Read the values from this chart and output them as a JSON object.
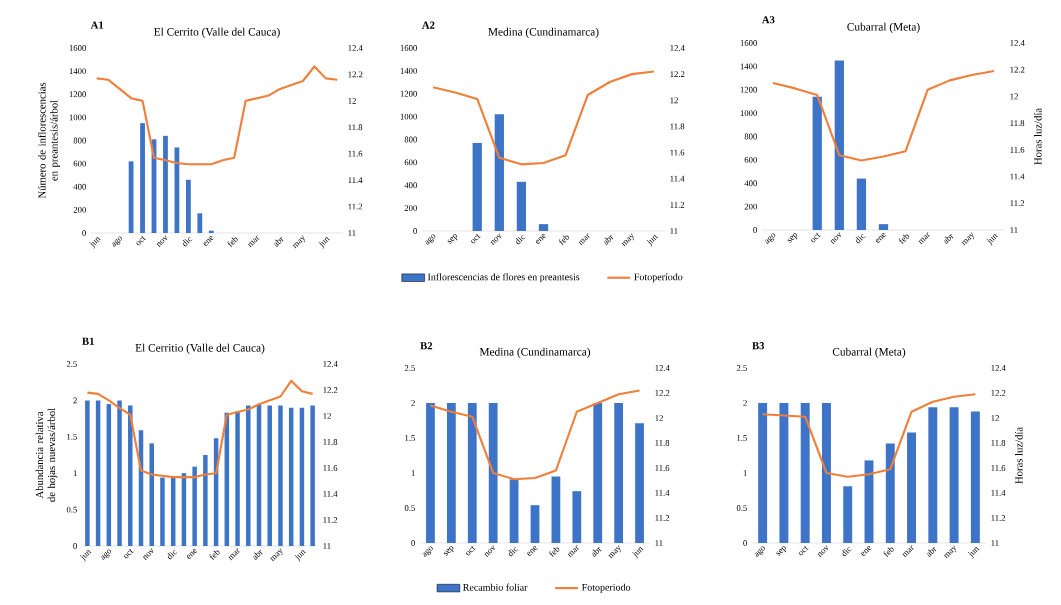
{
  "chart_data": [
    {
      "type": "bar",
      "title": "El Cerrito (Valle del Cauca)",
      "ylabel": "Número de inflorescencias en preantesis/árbol",
      "annotations": [
        "A1"
      ],
      "categories": [
        "jun",
        null,
        "ago",
        null,
        "oct",
        null,
        "nov",
        null,
        "dic",
        null,
        "ene",
        null,
        "feb",
        null,
        "mar",
        null,
        "abr",
        null,
        "may",
        null,
        "jun",
        null
      ],
      "series": [
        {
          "color": "#3d74c8",
          "values": [
            0,
            0,
            0,
            620,
            950,
            810,
            840,
            740,
            460,
            170,
            20,
            0,
            0,
            0,
            0,
            0,
            0,
            0,
            0,
            0,
            0,
            0
          ]
        },
        {
          "type": "line",
          "axis": "y2",
          "color": "#f07f3a",
          "values": [
            12.17,
            12.16,
            12.09,
            12.02,
            12.0,
            11.57,
            11.55,
            11.53,
            11.52,
            11.52,
            11.52,
            11.55,
            11.57,
            12.0,
            12.02,
            12.04,
            12.09,
            12.12,
            12.15,
            12.26,
            12.17,
            12.16
          ]
        }
      ],
      "ylim": [
        0,
        1600
      ],
      "yticks": [
        0,
        200,
        400,
        600,
        800,
        1000,
        1200,
        1400,
        1600
      ],
      "y2lim": [
        11,
        12.4
      ],
      "y2ticks": [
        11,
        11.2,
        11.4,
        11.6,
        11.8,
        12,
        12.2,
        12.4
      ]
    },
    {
      "type": "bar",
      "title": "Medina (Cundinamarca)",
      "annotations": [
        "A2"
      ],
      "legend": "bottom",
      "categories": [
        "ago",
        "sep",
        "oct",
        "nov",
        "dic",
        "ene",
        "feb",
        "mar",
        "abr",
        "may",
        "jun"
      ],
      "series": [
        {
          "name": "Inflorescencias de flores en preantesis",
          "color": "#3d74c8",
          "values": [
            0,
            0,
            770,
            1020,
            430,
            60,
            0,
            0,
            0,
            0,
            0
          ]
        },
        {
          "type": "line",
          "axis": "y2",
          "name": "Fotoperíodo",
          "color": "#f07f3a",
          "values": [
            12.1,
            12.06,
            12.01,
            11.56,
            11.51,
            11.52,
            11.58,
            12.04,
            12.14,
            12.2,
            12.22
          ]
        }
      ],
      "ylim": [
        0,
        1600
      ],
      "yticks": [
        0,
        200,
        400,
        600,
        800,
        1000,
        1200,
        1400,
        1600
      ],
      "y2lim": [
        11,
        12.4
      ],
      "y2ticks": [
        11,
        11.2,
        11.4,
        11.6,
        11.8,
        12,
        12.2,
        12.4
      ]
    },
    {
      "type": "bar",
      "title": "Cubarral (Meta)",
      "y2label": "Horas luz/día",
      "annotations": [
        "A3"
      ],
      "categories": [
        "ago",
        "sep",
        "oct",
        "nov",
        "dic",
        "ene",
        "feb",
        "mar",
        "abr",
        "may",
        "jun"
      ],
      "series": [
        {
          "color": "#3d74c8",
          "values": [
            0,
            0,
            1140,
            1450,
            440,
            50,
            0,
            0,
            0,
            0,
            0
          ]
        },
        {
          "type": "line",
          "axis": "y2",
          "color": "#f07f3a",
          "values": [
            12.1,
            12.06,
            12.01,
            11.56,
            11.52,
            11.55,
            11.59,
            12.05,
            12.12,
            12.16,
            12.19
          ]
        }
      ],
      "ylim": [
        0,
        1600
      ],
      "yticks": [
        0,
        200,
        400,
        600,
        800,
        1000,
        1200,
        1400,
        1600
      ],
      "y2lim": [
        11,
        12.4
      ],
      "y2ticks": [
        11,
        11.2,
        11.4,
        11.6,
        11.8,
        12,
        12.2,
        12.4
      ]
    },
    {
      "type": "bar",
      "title": "El Cerritio (Valle del Cauca)",
      "ylabel": "Abundancia relativa de hojas nuevas/árbol",
      "annotations": [
        "B1"
      ],
      "categories": [
        "jun",
        null,
        "ago",
        null,
        "oct",
        null,
        "nov",
        null,
        "dic",
        null,
        "ene",
        null,
        "feb",
        null,
        "mar",
        null,
        "abr",
        null,
        "may",
        null,
        "jun",
        null
      ],
      "series": [
        {
          "color": "#3d74c8",
          "values": [
            2.0,
            2.0,
            1.95,
            2.0,
            1.93,
            1.59,
            1.41,
            0.94,
            0.94,
            1.0,
            1.09,
            1.25,
            1.48,
            1.83,
            1.85,
            1.93,
            1.94,
            1.93,
            1.93,
            1.9,
            1.9,
            1.93
          ]
        },
        {
          "type": "line",
          "axis": "y2",
          "color": "#f07f3a",
          "values": [
            12.18,
            12.17,
            12.12,
            12.06,
            12.01,
            11.58,
            11.55,
            11.54,
            11.53,
            11.53,
            11.53,
            11.55,
            11.56,
            12.01,
            12.03,
            12.05,
            12.09,
            12.12,
            12.15,
            12.27,
            12.19,
            12.17
          ]
        }
      ],
      "ylim": [
        0,
        2.5
      ],
      "yticks": [
        0,
        0.5,
        1,
        1.5,
        2,
        2.5
      ],
      "y2lim": [
        11,
        12.4
      ],
      "y2ticks": [
        11,
        11.2,
        11.4,
        11.6,
        11.8,
        12,
        12.2,
        12.4
      ]
    },
    {
      "type": "bar",
      "title": "Medina (Cundinamarca)",
      "annotations": [
        "B2"
      ],
      "legend": "bottom",
      "categories": [
        "ago",
        "sep",
        "oct",
        "nov",
        "dic",
        "ene",
        "feb",
        "mar",
        "abr",
        "may",
        "jun"
      ],
      "series": [
        {
          "name": "Recambio foliar",
          "color": "#3d74c8",
          "values": [
            2.0,
            2.0,
            2.0,
            2.0,
            0.91,
            0.54,
            0.95,
            0.74,
            2.0,
            2.0,
            1.71
          ]
        },
        {
          "type": "line",
          "axis": "y2",
          "name": "Fotoperiodo",
          "color": "#f07f3a",
          "values": [
            12.1,
            12.05,
            12.01,
            11.56,
            11.51,
            11.52,
            11.58,
            12.05,
            12.12,
            12.19,
            12.22
          ]
        }
      ],
      "ylim": [
        0,
        2.5
      ],
      "yticks": [
        0,
        0.5,
        1,
        1.5,
        2,
        2.5
      ],
      "y2lim": [
        11,
        12.4
      ],
      "y2ticks": [
        11,
        11.2,
        11.4,
        11.6,
        11.8,
        12,
        12.2,
        12.4
      ]
    },
    {
      "type": "bar",
      "title": "Cubarral (Meta)",
      "y2label": "Horas luz/día",
      "annotations": [
        "B3"
      ],
      "categories": [
        "ago",
        "sep",
        "oct",
        "nov",
        "dic",
        "ene",
        "feb",
        "mar",
        "abr",
        "may",
        "jun"
      ],
      "series": [
        {
          "color": "#3d74c8",
          "values": [
            2.0,
            2.0,
            2.0,
            2.0,
            0.81,
            1.18,
            1.42,
            1.58,
            1.94,
            1.94,
            1.88
          ]
        },
        {
          "type": "line",
          "axis": "y2",
          "color": "#f07f3a",
          "values": [
            12.03,
            12.02,
            12.01,
            11.56,
            11.53,
            11.55,
            11.59,
            12.05,
            12.13,
            12.17,
            12.19
          ]
        }
      ],
      "ylim": [
        0,
        2.5
      ],
      "yticks": [
        0,
        0.5,
        1,
        1.5,
        2,
        2.5
      ],
      "y2lim": [
        11,
        12.4
      ],
      "y2ticks": [
        11,
        11.2,
        11.4,
        11.6,
        11.8,
        12,
        12.2,
        12.4
      ]
    }
  ]
}
